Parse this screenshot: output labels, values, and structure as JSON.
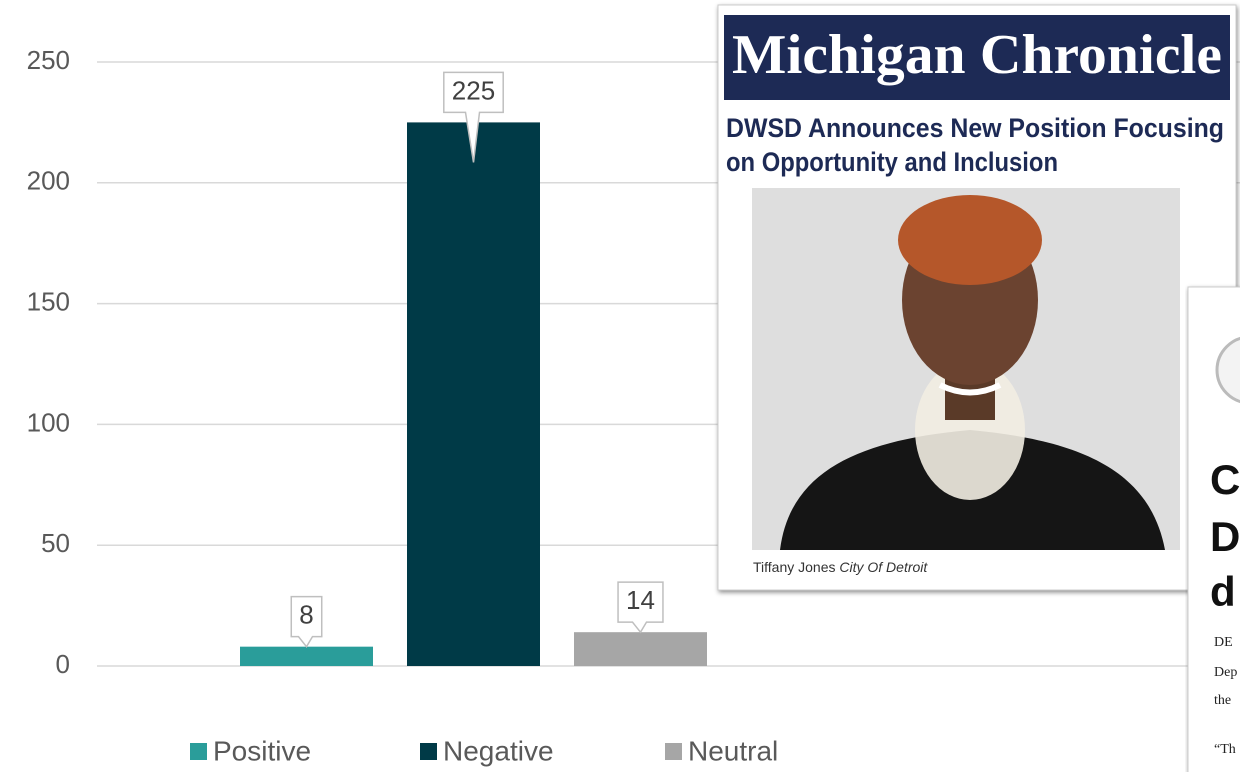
{
  "chart_data": {
    "type": "bar",
    "series": [
      {
        "name": "Positive",
        "color": "#2a9d9a",
        "values": [
          8
        ]
      },
      {
        "name": "Negative",
        "color": "#003a47",
        "values": [
          225
        ]
      },
      {
        "name": "Neutral",
        "color": "#a6a6a6",
        "values": [
          14
        ]
      }
    ],
    "ylim": [
      0,
      250
    ],
    "yticks": [
      0,
      50,
      100,
      150,
      200,
      250
    ],
    "grid": true,
    "legend": "bottom"
  },
  "clippings": [
    {
      "masthead": "Michigan Chronicle",
      "headline": [
        "DWSD Announces New Position Focusing",
        "on Opportunity and Inclusion"
      ],
      "caption_name": "Tiffany Jones",
      "caption_credit": "City Of Detroit"
    },
    {
      "heading": [
        "C",
        "D",
        "d"
      ],
      "body": [
        "DE",
        "Dep",
        "the",
        "“Th"
      ]
    }
  ]
}
